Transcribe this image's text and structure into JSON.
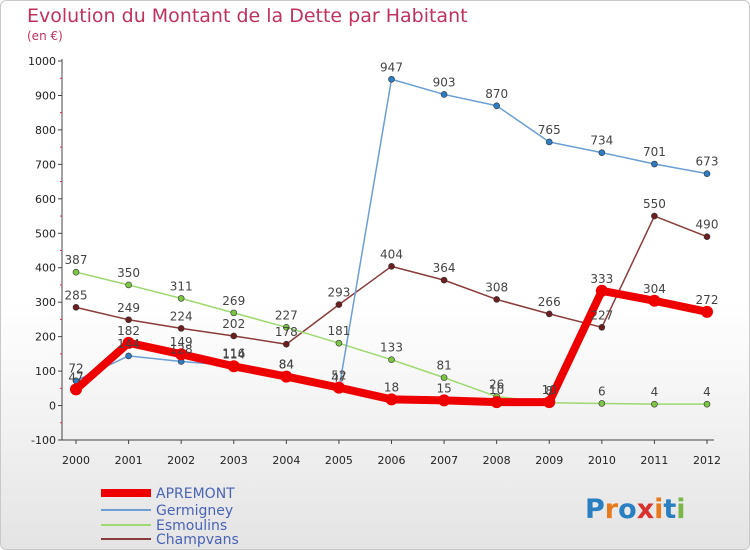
{
  "header": {
    "title": "Evolution du Montant de la Dette par Habitant",
    "subtitle": "(en €)"
  },
  "logo": {
    "text": "Proxiti",
    "colors": [
      "#2a7fc0",
      "#e87a1e",
      "#2a7fc0",
      "#d9322f",
      "#e87a1e",
      "#2a7fc0",
      "#7ab648"
    ]
  },
  "chart_data": {
    "type": "line",
    "x": [
      "2000",
      "2001",
      "2002",
      "2003",
      "2004",
      "2005",
      "2006",
      "2007",
      "2008",
      "2009",
      "2010",
      "2011",
      "2012"
    ],
    "ylim": [
      -100,
      1000
    ],
    "yticks": [
      "-100",
      "0",
      "100",
      "200",
      "300",
      "400",
      "500",
      "600",
      "700",
      "800",
      "900",
      "1000"
    ],
    "grid": false,
    "legend": "bottom-left",
    "series": [
      {
        "name": "APREMONT",
        "color": "#ee0000",
        "marker": "#ee0000",
        "width": 8,
        "values": [
          47,
          182,
          149,
          114,
          84,
          52,
          18,
          15,
          10,
          10,
          333,
          304,
          272
        ],
        "labels": [
          "47",
          "182",
          "149",
          "114",
          "84",
          "52",
          "18",
          "15",
          "10",
          "10",
          "333",
          "304",
          "272"
        ]
      },
      {
        "name": "Germigney",
        "color": "#6b9fd4",
        "marker": "#2e7cc4",
        "width": 1.5,
        "values": [
          72,
          144,
          128,
          116,
          84,
          47,
          947,
          903,
          870,
          765,
          734,
          701,
          673
        ],
        "labels": [
          "72",
          "144",
          "128",
          "116",
          "84",
          "47",
          "947",
          "903",
          "870",
          "765",
          "734",
          "701",
          "673"
        ]
      },
      {
        "name": "Esmoulins",
        "color": "#9ed86e",
        "marker": "#7cc443",
        "width": 1.5,
        "values": [
          387,
          350,
          311,
          269,
          227,
          181,
          133,
          81,
          26,
          8,
          6,
          4,
          4
        ],
        "labels": [
          "387",
          "350",
          "311",
          "269",
          "227",
          "181",
          "133",
          "81",
          "26",
          "8",
          "6",
          "4",
          "4"
        ]
      },
      {
        "name": "Champvans",
        "color": "#8a3b3b",
        "marker": "#6b1f1f",
        "width": 1.5,
        "values": [
          285,
          249,
          224,
          202,
          178,
          293,
          404,
          364,
          308,
          266,
          227,
          550,
          490
        ],
        "labels": [
          "285",
          "249",
          "224",
          "202",
          "178",
          "293",
          "404",
          "364",
          "308",
          "266",
          "227",
          "550",
          "490"
        ]
      }
    ]
  }
}
